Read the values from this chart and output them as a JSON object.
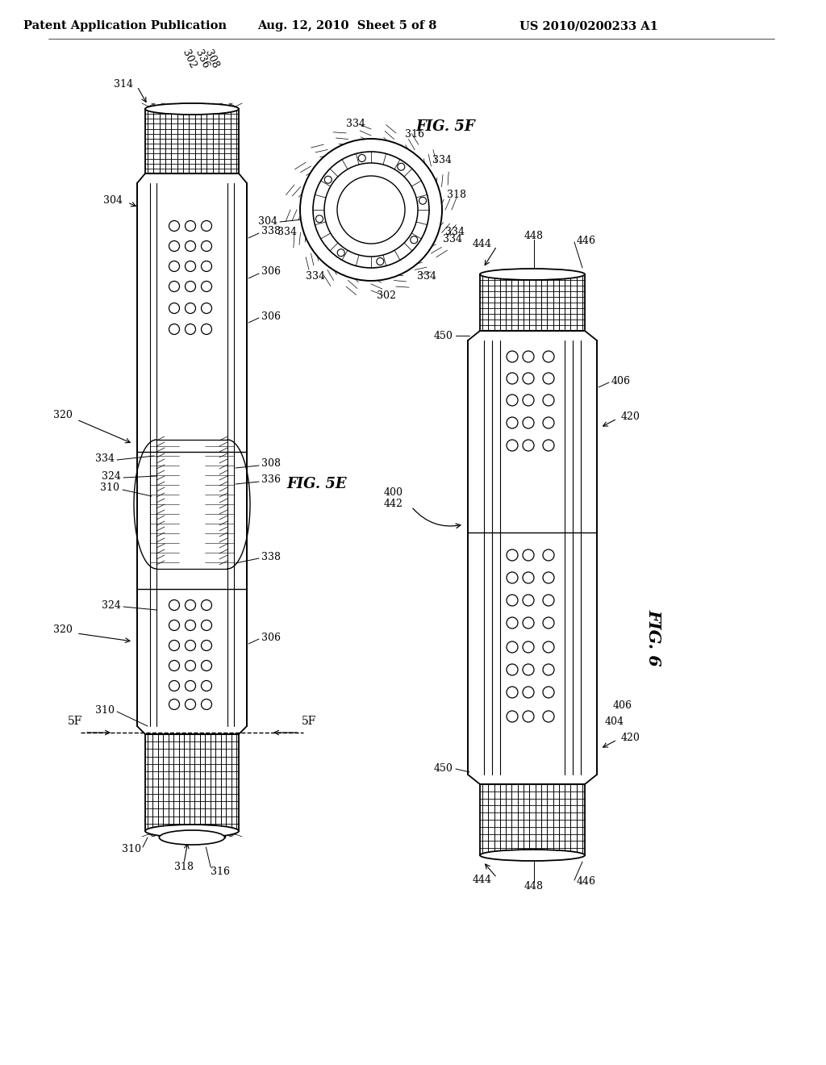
{
  "background_color": "#ffffff",
  "header_left": "Patent Application Publication",
  "header_center": "Aug. 12, 2010  Sheet 5 of 8",
  "header_right": "US 2010/0200233 A1",
  "header_fontsize": 10.5,
  "fig_5e_label": "FIG. 5E",
  "fig_5f_label": "FIG. 5F",
  "fig_6_label": "FIG. 6",
  "label_fontsize": 13,
  "ref_fontsize": 9,
  "line_color": "#000000"
}
